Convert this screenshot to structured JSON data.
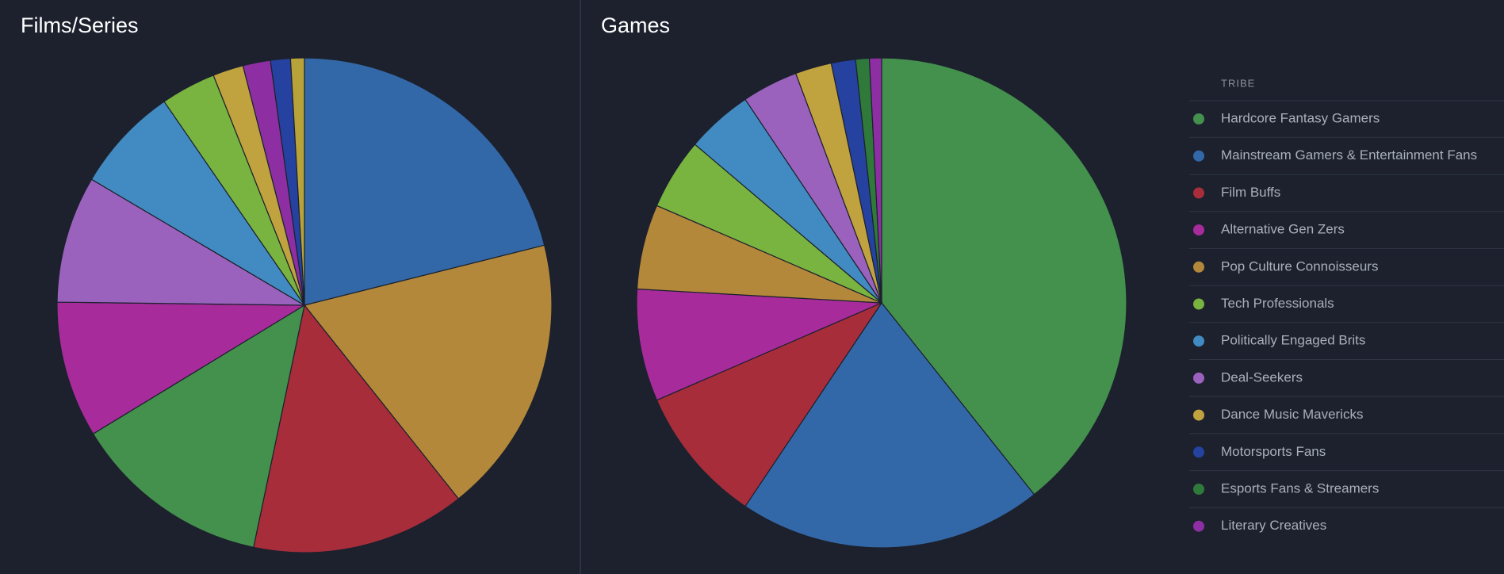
{
  "chart_data": [
    {
      "type": "pie",
      "title": "Films/Series",
      "values": [
        21.1,
        18.2,
        14,
        13,
        8.9,
        8.3,
        6.9,
        3.6,
        2,
        1.8,
        1.3,
        0.9
      ],
      "colors": [
        "#3368a8",
        "#b3883a",
        "#a72d3b",
        "#44904d",
        "#a82b9c",
        "#9a62bd",
        "#428bc2",
        "#79b340",
        "#c0a33f",
        "#8e2ea3",
        "#2542a0",
        "#b8a23a"
      ]
    },
    {
      "type": "pie",
      "title": "Games",
      "legend_title": "TRIBE",
      "categories": [
        "Hardcore Fantasy Gamers",
        "Mainstream Gamers & Entertainment Fans",
        "Film Buffs",
        "Alternative Gen Zers",
        "Pop Culture Connoisseurs",
        "Tech Professionals",
        "Politically Engaged Brits",
        "Deal-Seekers",
        "Dance Music Mavericks",
        "Motorsports Fans",
        "Esports Fans & Streamers",
        "Literary Creatives"
      ],
      "values": [
        39.3,
        20.1,
        9.1,
        7.4,
        5.6,
        4.7,
        4.4,
        3.7,
        2.4,
        1.6,
        0.9,
        0.8
      ],
      "colors": [
        "#44904d",
        "#3368a8",
        "#a72d3b",
        "#a82b9c",
        "#b3883a",
        "#79b340",
        "#428bc2",
        "#9a62bd",
        "#c0a33f",
        "#2542a0",
        "#2f7a3a",
        "#8e2ea3"
      ]
    }
  ]
}
